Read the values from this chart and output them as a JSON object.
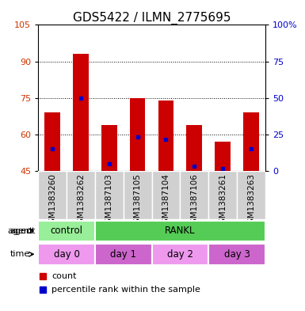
{
  "title": "GDS5422 / ILMN_2775695",
  "samples": [
    "GSM1383260",
    "GSM1383262",
    "GSM1387103",
    "GSM1387105",
    "GSM1387104",
    "GSM1387106",
    "GSM1383261",
    "GSM1383263"
  ],
  "bar_bottoms": [
    45,
    45,
    45,
    45,
    45,
    45,
    45,
    45
  ],
  "bar_tops": [
    69,
    93,
    64,
    75,
    74,
    64,
    57,
    69
  ],
  "blue_dots": [
    54,
    75,
    48,
    59,
    58,
    47,
    46,
    54
  ],
  "ylim_left": [
    45,
    105
  ],
  "ylim_right": [
    0,
    100
  ],
  "yticks_left": [
    45,
    60,
    75,
    90,
    105
  ],
  "yticks_right": [
    0,
    25,
    50,
    75,
    100
  ],
  "bar_color": "#cc0000",
  "dot_color": "#0000cc",
  "grid_color": "#000000",
  "agent_row": [
    {
      "label": "control",
      "start": 0,
      "end": 2,
      "color": "#99ee99"
    },
    {
      "label": "RANKL",
      "start": 2,
      "end": 8,
      "color": "#55cc55"
    }
  ],
  "time_row": [
    {
      "label": "day 0",
      "start": 0,
      "end": 2,
      "color": "#ee99ee"
    },
    {
      "label": "day 1",
      "start": 2,
      "end": 4,
      "color": "#cc66cc"
    },
    {
      "label": "day 2",
      "start": 4,
      "end": 6,
      "color": "#ee99ee"
    },
    {
      "label": "day 3",
      "start": 6,
      "end": 8,
      "color": "#cc66cc"
    }
  ],
  "left_label_color": "#cc3300",
  "right_label_color": "#0000cc",
  "title_fontsize": 11,
  "tick_fontsize": 8,
  "sample_label_fontsize": 7.5,
  "row_label_fontsize": 8,
  "segment_fontsize": 8.5
}
